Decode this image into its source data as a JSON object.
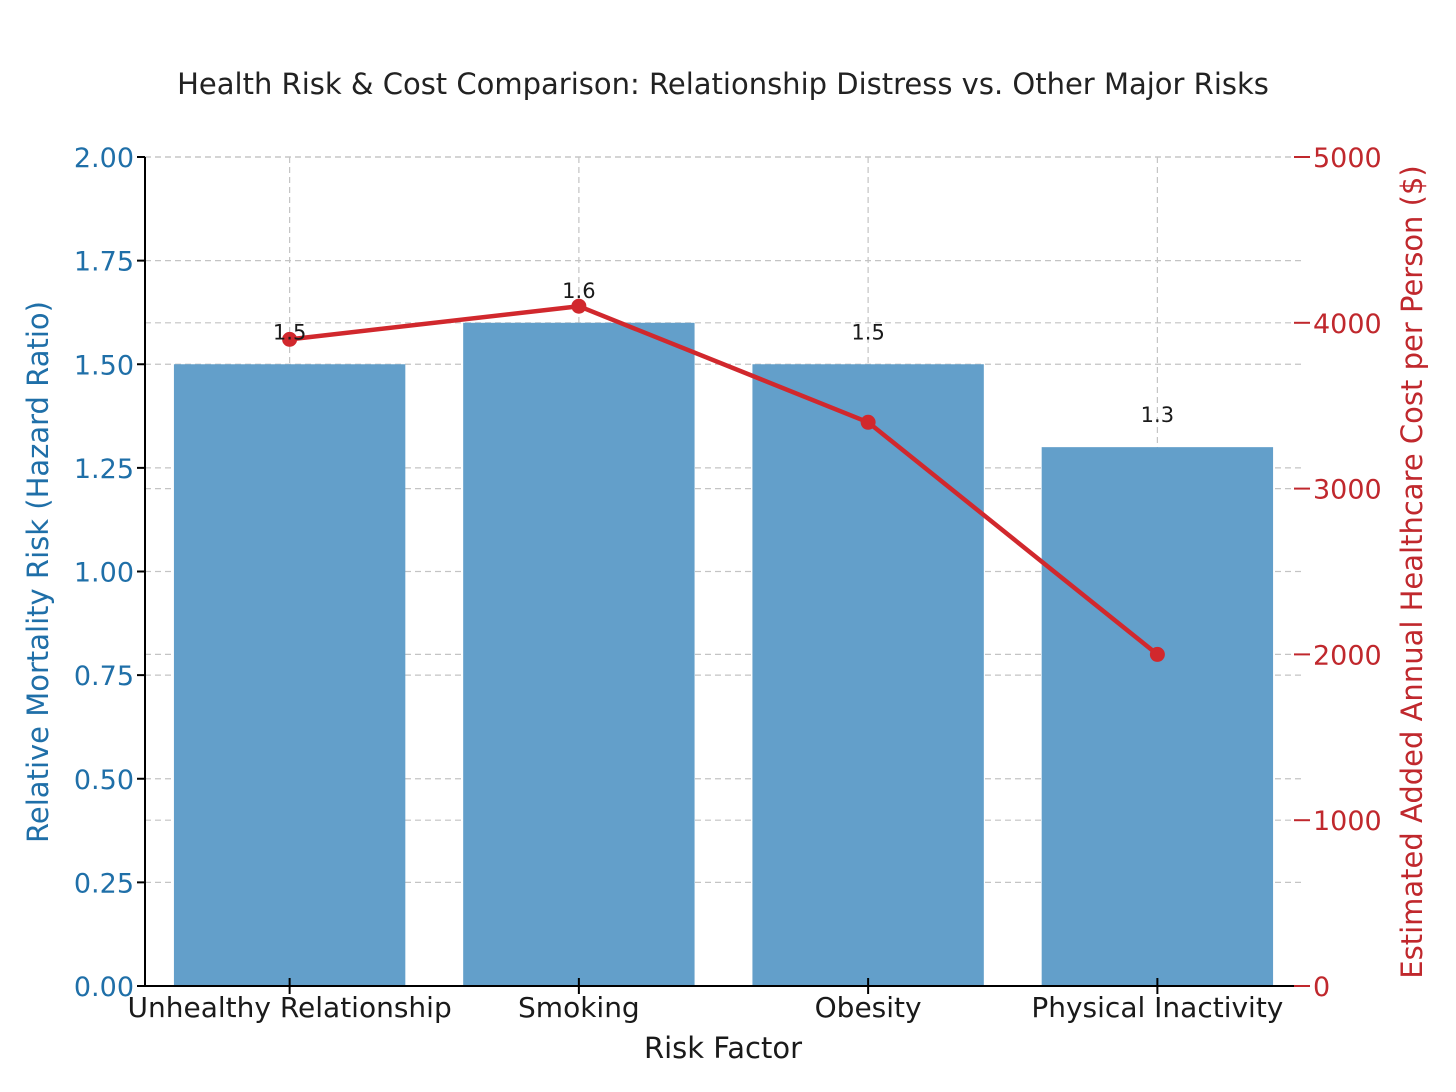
{
  "chart_data": {
    "type": "bar",
    "title": "Health Risk & Cost Comparison: Relationship Distress vs. Other Major Risks",
    "xlabel": "Risk Factor",
    "ylabel": "Relative Mortality Risk (Hazard Ratio)",
    "y2label": "Estimated Added Annual Healthcare Cost per Person ($)",
    "categories": [
      "Unhealthy Relationship",
      "Smoking",
      "Obesity",
      "Physical Inactivity"
    ],
    "series": [
      {
        "type": "bar",
        "axis": "left",
        "values": [
          1.5,
          1.6,
          1.5,
          1.3
        ],
        "data_labels": [
          "1.5",
          "1.6",
          "1.5",
          "1.3"
        ],
        "color": "#639fca"
      },
      {
        "type": "line",
        "axis": "right",
        "values": [
          3900,
          4100,
          3400,
          2000
        ],
        "color": "#d1282d"
      }
    ],
    "ylim": [
      0,
      2.0
    ],
    "y2lim": [
      0,
      5000
    ],
    "yticks": [
      "0.00",
      "0.25",
      "0.50",
      "0.75",
      "1.00",
      "1.25",
      "1.50",
      "1.75",
      "2.00"
    ],
    "y2ticks": [
      "0",
      "1000",
      "2000",
      "3000",
      "4000",
      "5000"
    ],
    "grid": true,
    "colors": {
      "left_axis": "#1f6fa8",
      "right_axis": "#c0282d",
      "grid": "#c4c4c4",
      "axis_line": "#000000"
    }
  }
}
